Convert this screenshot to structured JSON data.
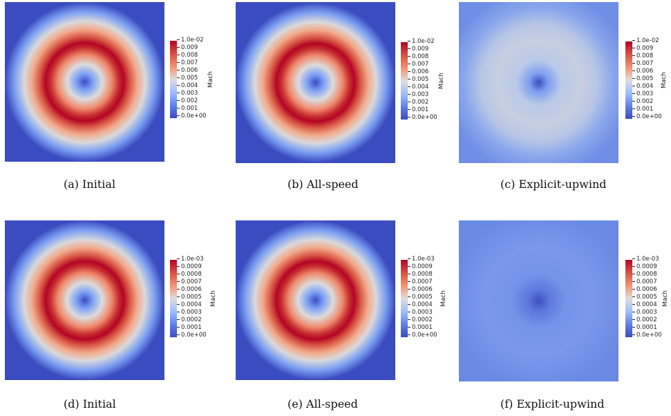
{
  "colorbar_label": "Mach",
  "ticks_top_row": [
    "1.0e-02",
    "0.009",
    "0.008",
    "0.007",
    "0.006",
    "0.005",
    "0.004",
    "0.003",
    "0.002",
    "0.001",
    "0.0e+00"
  ],
  "ticks_bottom_row": [
    "1.0e-03",
    "0.0009",
    "0.0008",
    "0.0007",
    "0.0006",
    "0.0005",
    "0.0004",
    "0.0003",
    "0.0002",
    "0.0001",
    "0.0e+00"
  ],
  "panels": [
    {
      "caption": "(a)  Initial",
      "field": "ring"
    },
    {
      "caption": "(b)  All-speed",
      "field": "ring"
    },
    {
      "caption": "(c)  Explicit-upwind",
      "field": "diffused"
    },
    {
      "caption": "(d)  Initial",
      "field": "ring"
    },
    {
      "caption": "(e)  All-speed",
      "field": "ring"
    },
    {
      "caption": "(f)  Explicit-upwind",
      "field": "diffused-weak"
    }
  ],
  "colors": {
    "background": "#3b4cc0",
    "ring_peak": "#b40426",
    "mid": "#dddddd"
  }
}
